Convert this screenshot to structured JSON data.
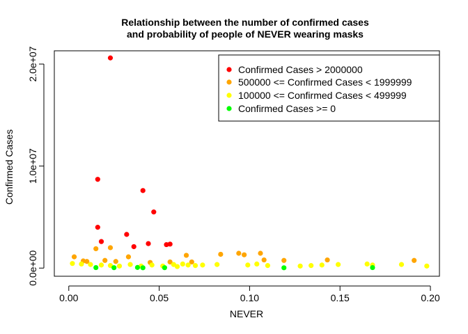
{
  "chart_data": {
    "type": "scatter",
    "title_lines": [
      "Relationship between the number of confirmed cases",
      "and probability of people of NEVER wearing masks"
    ],
    "xlabel": "NEVER",
    "ylabel": "Confirmed Cases",
    "xlim": [
      -0.008,
      0.205
    ],
    "ylim": [
      -800000,
      21300000
    ],
    "x_ticks": [
      {
        "value": 0.0,
        "label": "0.00"
      },
      {
        "value": 0.05,
        "label": "0.05"
      },
      {
        "value": 0.1,
        "label": "0.10"
      },
      {
        "value": 0.15,
        "label": "0.15"
      },
      {
        "value": 0.2,
        "label": "0.20"
      }
    ],
    "y_ticks": [
      {
        "value": 0,
        "label": "0.0e+00"
      },
      {
        "value": 10000000,
        "label": "1.0e+07"
      },
      {
        "value": 20000000,
        "label": "2.0e+07"
      }
    ],
    "grid": false,
    "legend_position": "top-right",
    "colors": {
      "red": "#ff0000",
      "orange": "#ffa500",
      "yellow": "#ffff00",
      "green": "#00ff00"
    },
    "series": [
      {
        "name": "Confirmed Cases > 2000000",
        "color": "#ff0000",
        "points": [
          [
            0.023,
            20600000
          ],
          [
            0.016,
            8700000
          ],
          [
            0.041,
            7600000
          ],
          [
            0.047,
            5500000
          ],
          [
            0.016,
            4000000
          ],
          [
            0.032,
            3300000
          ],
          [
            0.018,
            2600000
          ],
          [
            0.044,
            2400000
          ],
          [
            0.054,
            2300000
          ],
          [
            0.056,
            2350000
          ],
          [
            0.036,
            2100000
          ]
        ]
      },
      {
        "name": "500000 <= Confirmed Cases < 1999999",
        "color": "#ffa500",
        "points": [
          [
            0.015,
            1900000
          ],
          [
            0.023,
            2000000
          ],
          [
            0.033,
            1100000
          ],
          [
            0.065,
            1250000
          ],
          [
            0.084,
            1350000
          ],
          [
            0.094,
            1450000
          ],
          [
            0.097,
            1300000
          ],
          [
            0.106,
            1450000
          ],
          [
            0.003,
            1100000
          ],
          [
            0.008,
            700000
          ],
          [
            0.01,
            650000
          ],
          [
            0.02,
            750000
          ],
          [
            0.026,
            650000
          ],
          [
            0.045,
            550000
          ],
          [
            0.056,
            600000
          ],
          [
            0.068,
            600000
          ],
          [
            0.108,
            800000
          ],
          [
            0.119,
            750000
          ],
          [
            0.143,
            800000
          ],
          [
            0.191,
            750000
          ]
        ]
      },
      {
        "name": "100000 <= Confirmed Cases < 499999",
        "color": "#ffff00",
        "points": [
          [
            0.002,
            450000
          ],
          [
            0.007,
            400000
          ],
          [
            0.012,
            350000
          ],
          [
            0.018,
            300000
          ],
          [
            0.023,
            250000
          ],
          [
            0.028,
            200000
          ],
          [
            0.034,
            350000
          ],
          [
            0.04,
            200000
          ],
          [
            0.046,
            300000
          ],
          [
            0.052,
            200000
          ],
          [
            0.058,
            350000
          ],
          [
            0.063,
            400000
          ],
          [
            0.066,
            300000
          ],
          [
            0.07,
            250000
          ],
          [
            0.074,
            300000
          ],
          [
            0.082,
            350000
          ],
          [
            0.099,
            300000
          ],
          [
            0.104,
            400000
          ],
          [
            0.11,
            250000
          ],
          [
            0.128,
            200000
          ],
          [
            0.134,
            250000
          ],
          [
            0.14,
            300000
          ],
          [
            0.149,
            350000
          ],
          [
            0.165,
            400000
          ],
          [
            0.168,
            300000
          ],
          [
            0.184,
            350000
          ],
          [
            0.198,
            200000
          ],
          [
            0.06,
            150000
          ]
        ]
      },
      {
        "name": "Confirmed Cases >= 0",
        "color": "#00ff00",
        "points": [
          [
            0.015,
            50000
          ],
          [
            0.025,
            40000
          ],
          [
            0.038,
            60000
          ],
          [
            0.041,
            30000
          ],
          [
            0.053,
            40000
          ],
          [
            0.119,
            30000
          ],
          [
            0.168,
            50000
          ]
        ]
      }
    ]
  }
}
